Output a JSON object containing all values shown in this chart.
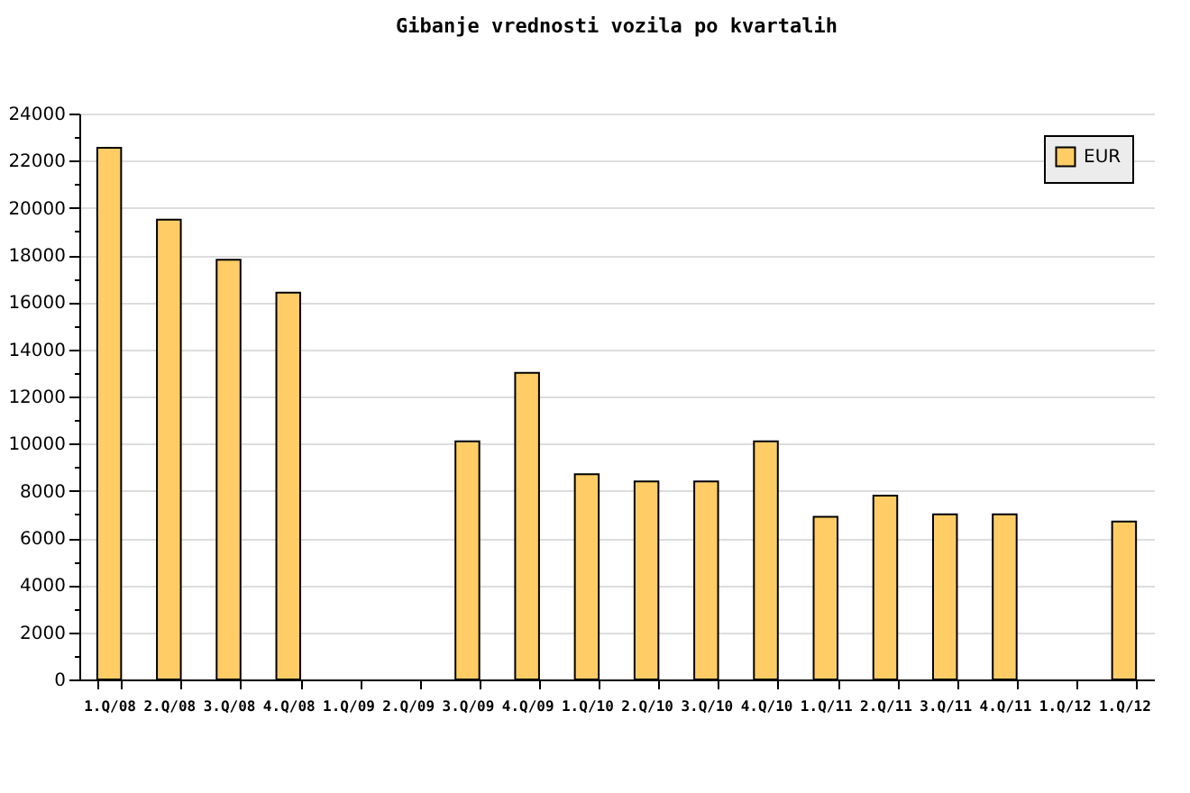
{
  "chart_data": {
    "type": "bar",
    "title": "Gibanje vrednosti vozila po kvartalih",
    "categories": [
      "1.Q/08",
      "2.Q/08",
      "3.Q/08",
      "4.Q/08",
      "1.Q/09",
      "2.Q/09",
      "3.Q/09",
      "4.Q/09",
      "1.Q/10",
      "2.Q/10",
      "3.Q/10",
      "4.Q/10",
      "1.Q/11",
      "2.Q/11",
      "3.Q/11",
      "4.Q/11",
      "1.Q/12",
      "1.Q/12"
    ],
    "series": [
      {
        "name": "EUR",
        "color": "#ffcc66",
        "values": [
          22550,
          19500,
          17800,
          16400,
          null,
          null,
          10100,
          13000,
          8700,
          8400,
          8400,
          10100,
          6900,
          7800,
          7000,
          7000,
          null,
          6700
        ]
      }
    ],
    "ylim": [
      0,
      24000
    ],
    "yticks": [
      0,
      {
        "value": 1000,
        "label": null
      },
      2000,
      {
        "value": 3000,
        "label": null
      },
      4000,
      {
        "value": 5000,
        "label": null
      },
      6000,
      {
        "value": 7000,
        "label": null
      },
      8000,
      {
        "value": 9000,
        "label": null
      },
      10000,
      {
        "value": 11000,
        "label": null
      },
      12000,
      {
        "value": 13000,
        "label": null
      },
      14000,
      {
        "value": 15000,
        "label": null
      },
      16000,
      {
        "value": 17000,
        "label": null
      },
      18000,
      {
        "value": 19000,
        "label": null
      },
      20000,
      {
        "value": 21000,
        "label": null
      },
      22000,
      {
        "value": 23000,
        "label": null
      },
      24000
    ],
    "grid": "y",
    "legend": "top right"
  }
}
